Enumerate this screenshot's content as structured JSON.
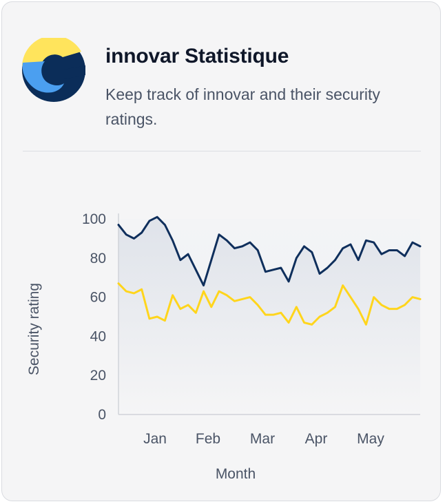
{
  "header": {
    "title": "innovar Statistique",
    "subtitle": "Keep track of innovar and their security ratings.",
    "logo_icon": "innovar-logo-icon"
  },
  "colors": {
    "navy": "#0f2f5c",
    "yellow": "#ffd51c",
    "logo_blue": "#4b9ff0",
    "logo_yellow": "#ffe45c",
    "logo_navy": "#0b2d59"
  },
  "chart_data": {
    "type": "line",
    "xlabel": "Month",
    "ylabel": "Security rating",
    "ylim": [
      0,
      100
    ],
    "yticks": [
      0,
      20,
      40,
      60,
      80,
      100
    ],
    "xtick_labels": [
      "Jan",
      "Feb",
      "Mar",
      "Apr",
      "May"
    ],
    "grid": false,
    "series": [
      {
        "color": "#0f2f5c",
        "fill": true,
        "values": [
          97,
          92,
          90,
          93,
          99,
          101,
          97,
          89,
          79,
          82,
          74,
          66,
          79,
          92,
          89,
          85,
          86,
          88,
          84,
          73,
          74,
          75,
          68,
          80,
          86,
          83,
          72,
          75,
          79,
          85,
          87,
          79,
          89,
          88,
          82,
          84,
          84,
          81,
          88,
          86
        ]
      },
      {
        "color": "#ffd51c",
        "fill": false,
        "values": [
          67,
          63,
          62,
          64,
          49,
          50,
          48,
          61,
          54,
          56,
          52,
          63,
          55,
          63,
          61,
          58,
          59,
          60,
          56,
          51,
          51,
          52,
          47,
          55,
          47,
          46,
          50,
          52,
          55,
          66,
          60,
          54,
          46,
          60,
          56,
          54,
          54,
          56,
          60,
          59
        ]
      }
    ]
  }
}
